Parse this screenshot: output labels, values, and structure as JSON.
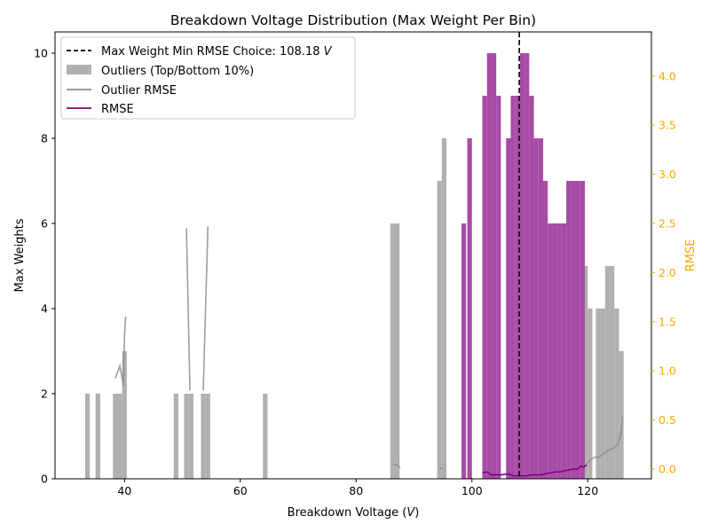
{
  "chart_data": {
    "type": "bar",
    "title": "Breakdown Voltage Distribution (Max Weight Per Bin)",
    "xlabel": "Breakdown Voltage (V)",
    "ylabel": "Max Weights",
    "y2label": "RMSE",
    "xlim": [
      28,
      131
    ],
    "ylim": [
      0,
      10.5
    ],
    "y2lim": [
      -0.1,
      4.45
    ],
    "xticks": [
      40,
      60,
      80,
      100,
      120
    ],
    "yticks": [
      0,
      2,
      4,
      6,
      8,
      10
    ],
    "y2ticks": [
      "0.0",
      "0.5",
      "1.0",
      "1.5",
      "2.0",
      "2.5",
      "3.0",
      "3.5",
      "4.0"
    ],
    "grid": false,
    "legend_position": "upper-left",
    "bar_width": 0.8,
    "colors": {
      "outliers": "#b0b0b0",
      "inliers": "#a64ca6",
      "outlier_rmse": "#8c8c8c",
      "rmse": "#800080",
      "choice_line": "#000000",
      "right_axis": "#ffa500"
    },
    "legend": [
      {
        "label": "Max Weight Min RMSE Choice: 108.18 V",
        "style": "dashed-line"
      },
      {
        "label": "Outliers (Top/Bottom 10%)",
        "style": "patch-gray"
      },
      {
        "label": "Outlier RMSE",
        "style": "line-gray"
      },
      {
        "label": "RMSE",
        "style": "line-purple"
      }
    ],
    "choice_x": 108.18,
    "outlier_bars": [
      {
        "x": 33.6,
        "y": 2
      },
      {
        "x": 35.4,
        "y": 2
      },
      {
        "x": 38.4,
        "y": 2
      },
      {
        "x": 39.2,
        "y": 2
      },
      {
        "x": 40.0,
        "y": 3
      },
      {
        "x": 48.9,
        "y": 2
      },
      {
        "x": 50.7,
        "y": 2
      },
      {
        "x": 51.5,
        "y": 2
      },
      {
        "x": 53.6,
        "y": 2
      },
      {
        "x": 54.4,
        "y": 2
      },
      {
        "x": 64.3,
        "y": 2
      },
      {
        "x": 86.3,
        "y": 6
      },
      {
        "x": 87.1,
        "y": 6
      },
      {
        "x": 94.4,
        "y": 7
      },
      {
        "x": 95.2,
        "y": 8
      },
      {
        "x": 119.6,
        "y": 5
      },
      {
        "x": 120.4,
        "y": 4
      },
      {
        "x": 121.8,
        "y": 4
      },
      {
        "x": 122.6,
        "y": 4
      },
      {
        "x": 123.4,
        "y": 5
      },
      {
        "x": 124.2,
        "y": 5
      },
      {
        "x": 125.0,
        "y": 4
      },
      {
        "x": 125.8,
        "y": 3
      }
    ],
    "inlier_bars": [
      {
        "x": 98.6,
        "y": 6
      },
      {
        "x": 99.6,
        "y": 8
      },
      {
        "x": 102.2,
        "y": 9
      },
      {
        "x": 103.0,
        "y": 10
      },
      {
        "x": 103.8,
        "y": 10
      },
      {
        "x": 104.6,
        "y": 9
      },
      {
        "x": 106.3,
        "y": 8
      },
      {
        "x": 107.1,
        "y": 9
      },
      {
        "x": 107.9,
        "y": 9
      },
      {
        "x": 108.7,
        "y": 10
      },
      {
        "x": 109.5,
        "y": 10
      },
      {
        "x": 110.3,
        "y": 9
      },
      {
        "x": 111.1,
        "y": 8
      },
      {
        "x": 111.9,
        "y": 8
      },
      {
        "x": 112.7,
        "y": 7
      },
      {
        "x": 113.5,
        "y": 6
      },
      {
        "x": 114.3,
        "y": 6
      },
      {
        "x": 115.1,
        "y": 6
      },
      {
        "x": 115.9,
        "y": 6
      },
      {
        "x": 116.7,
        "y": 7
      },
      {
        "x": 117.5,
        "y": 7
      },
      {
        "x": 118.3,
        "y": 7
      },
      {
        "x": 119.1,
        "y": 7
      }
    ],
    "outlier_rmse_segments": [
      [
        [
          38.4,
          0.92
        ],
        [
          39.2,
          1.05
        ],
        [
          39.8,
          0.85
        ],
        [
          40.0,
          1.35
        ],
        [
          40.2,
          1.55
        ]
      ],
      [
        [
          50.7,
          2.45
        ],
        [
          51.3,
          0.8
        ]
      ],
      [
        [
          53.6,
          0.8
        ],
        [
          54.4,
          2.47
        ]
      ],
      [
        [
          86.3,
          0.05
        ],
        [
          87.1,
          0.04
        ],
        [
          87.6,
          0.01
        ]
      ],
      [
        [
          94.4,
          0.0
        ],
        [
          95.0,
          0.01
        ]
      ],
      [
        [
          119.6,
          0.04
        ],
        [
          120.4,
          0.09
        ],
        [
          121.2,
          0.12
        ],
        [
          122.0,
          0.12
        ],
        [
          122.8,
          0.16
        ],
        [
          123.6,
          0.19
        ],
        [
          124.4,
          0.21
        ],
        [
          125.2,
          0.25
        ],
        [
          125.8,
          0.37
        ],
        [
          126.0,
          0.53
        ]
      ]
    ],
    "rmse_line": [
      [
        101.8,
        -0.04
      ],
      [
        102.6,
        -0.03
      ],
      [
        103.4,
        -0.06
      ],
      [
        104.2,
        -0.06
      ],
      [
        105.0,
        -0.06
      ],
      [
        106.3,
        -0.05
      ],
      [
        107.1,
        -0.07
      ],
      [
        107.9,
        -0.07
      ],
      [
        108.7,
        -0.07
      ],
      [
        109.5,
        -0.07
      ],
      [
        110.3,
        -0.06
      ],
      [
        111.1,
        -0.06
      ],
      [
        111.9,
        -0.06
      ],
      [
        112.7,
        -0.05
      ],
      [
        113.5,
        -0.04
      ],
      [
        114.3,
        -0.03
      ],
      [
        115.1,
        -0.03
      ],
      [
        115.9,
        -0.02
      ],
      [
        116.7,
        -0.01
      ],
      [
        117.5,
        0.0
      ],
      [
        118.3,
        0.0
      ],
      [
        118.8,
        0.03
      ],
      [
        119.3,
        0.02
      ],
      [
        119.8,
        0.04
      ]
    ]
  }
}
